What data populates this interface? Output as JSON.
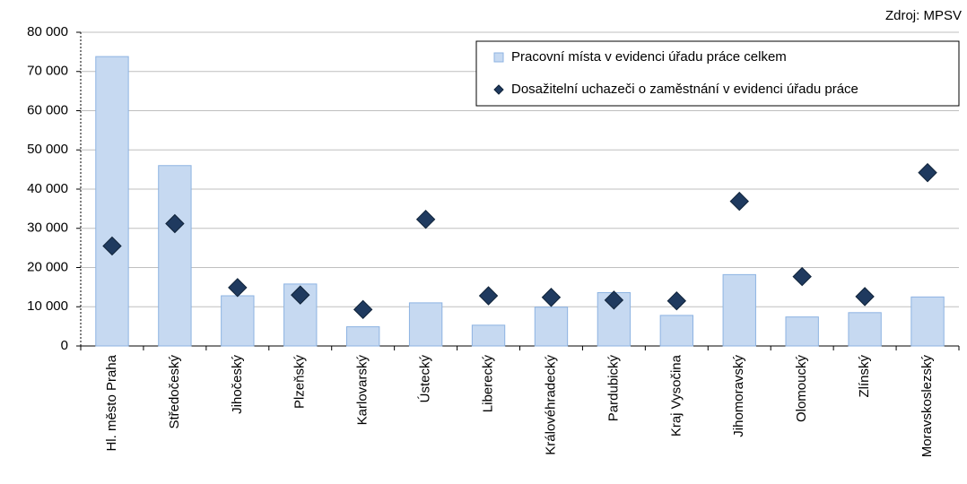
{
  "chart_data": {
    "type": "bar_scatter",
    "source": "Zdroj: MPSV",
    "categories": [
      "Hl. město Praha",
      "Středočeský",
      "Jihočeský",
      "Plzeňský",
      "Karlovarský",
      "Ústecký",
      "Liberecký",
      "Královéhradecký",
      "Pardubický",
      "Kraj Vysočina",
      "Jihomoravský",
      "Olomoucký",
      "Zlínský",
      "Moravskoslezský"
    ],
    "series": [
      {
        "name": "Pracovní místa v evidenci úřadu práce celkem",
        "type": "bar",
        "color": "#c6d9f1",
        "values": [
          73800,
          46000,
          12800,
          15800,
          4900,
          11000,
          5300,
          9900,
          13600,
          7800,
          18200,
          7400,
          8500,
          12500
        ]
      },
      {
        "name": "Dosažitelní uchazeči o zaměstnání v evidenci úřadu práce",
        "type": "scatter",
        "color": "#1f3a5f",
        "values": [
          25500,
          31200,
          14900,
          13000,
          9300,
          32300,
          12800,
          12400,
          11700,
          11500,
          36900,
          17700,
          12600,
          44200
        ]
      }
    ],
    "ylim": [
      0,
      80000
    ],
    "yticks": [
      {
        "value": 0,
        "label": "0"
      },
      {
        "value": 10000,
        "label": "10 000"
      },
      {
        "value": 20000,
        "label": "20 000"
      },
      {
        "value": 30000,
        "label": "30 000"
      },
      {
        "value": 40000,
        "label": "40 000"
      },
      {
        "value": 50000,
        "label": "50 000"
      },
      {
        "value": 60000,
        "label": "60 000"
      },
      {
        "value": 70000,
        "label": "70 000"
      },
      {
        "value": 80000,
        "label": "80 000"
      }
    ],
    "grid": true,
    "legend": "top-right"
  }
}
